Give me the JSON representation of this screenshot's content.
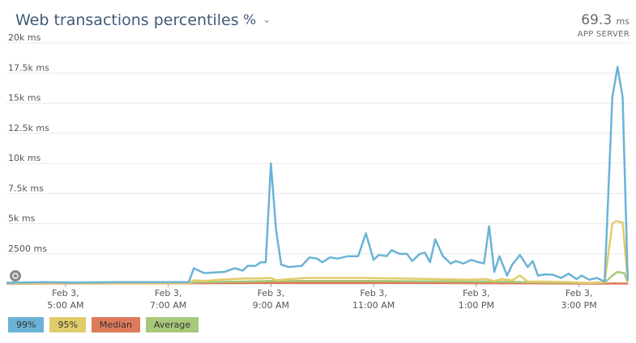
{
  "header": {
    "title": "Web transactions percentiles",
    "unit_label": "%",
    "summary_value": "69.3",
    "summary_unit": "ms",
    "summary_label": "APP SERVER"
  },
  "icons": {
    "dropdown": "chevron-down-icon",
    "scrubber": "scrubber-handle-icon"
  },
  "chart_data": {
    "type": "line",
    "title": "Web transactions percentiles",
    "ylim": [
      0,
      20000
    ],
    "y_ticks": [
      {
        "value": 2500,
        "label": "2500 ms"
      },
      {
        "value": 5000,
        "label": "5k ms"
      },
      {
        "value": 7500,
        "label": "7.5k ms"
      },
      {
        "value": 10000,
        "label": "10k ms"
      },
      {
        "value": 12500,
        "label": "12.5k ms"
      },
      {
        "value": 15000,
        "label": "15k ms"
      },
      {
        "value": 17500,
        "label": "17.5k ms"
      },
      {
        "value": 20000,
        "label": "20k ms"
      }
    ],
    "x_range_hours": [
      3.85,
      16.0
    ],
    "x_ticks": [
      {
        "hour": 5,
        "line1": "Feb 3,",
        "line2": "5:00 AM"
      },
      {
        "hour": 7,
        "line1": "Feb 3,",
        "line2": "7:00 AM"
      },
      {
        "hour": 9,
        "line1": "Feb 3,",
        "line2": "9:00 AM"
      },
      {
        "hour": 11,
        "line1": "Feb 3,",
        "line2": "11:00 AM"
      },
      {
        "hour": 13,
        "line1": "Feb 3,",
        "line2": "1:00 PM"
      },
      {
        "hour": 15,
        "line1": "Feb 3,",
        "line2": "3:00 PM"
      }
    ],
    "grid": true,
    "legend_position": "bottom-left",
    "series": [
      {
        "name": "99%",
        "color": "#6bb3d6",
        "points": [
          [
            3.85,
            100
          ],
          [
            4.6,
            150
          ],
          [
            5.2,
            120
          ],
          [
            6.0,
            150
          ],
          [
            6.8,
            150
          ],
          [
            7.4,
            150
          ],
          [
            7.5,
            1300
          ],
          [
            7.7,
            900
          ],
          [
            7.9,
            950
          ],
          [
            8.1,
            1000
          ],
          [
            8.3,
            1300
          ],
          [
            8.45,
            1100
          ],
          [
            8.55,
            1500
          ],
          [
            8.7,
            1500
          ],
          [
            8.8,
            1800
          ],
          [
            8.9,
            1800
          ],
          [
            9.0,
            10000
          ],
          [
            9.1,
            4500
          ],
          [
            9.2,
            1600
          ],
          [
            9.35,
            1400
          ],
          [
            9.6,
            1500
          ],
          [
            9.75,
            2200
          ],
          [
            9.9,
            2100
          ],
          [
            10.0,
            1800
          ],
          [
            10.15,
            2200
          ],
          [
            10.3,
            2100
          ],
          [
            10.5,
            2300
          ],
          [
            10.7,
            2300
          ],
          [
            10.85,
            4200
          ],
          [
            11.0,
            2000
          ],
          [
            11.1,
            2400
          ],
          [
            11.25,
            2300
          ],
          [
            11.35,
            2800
          ],
          [
            11.5,
            2500
          ],
          [
            11.65,
            2500
          ],
          [
            11.75,
            1900
          ],
          [
            11.9,
            2500
          ],
          [
            12.0,
            2600
          ],
          [
            12.1,
            1800
          ],
          [
            12.2,
            3700
          ],
          [
            12.35,
            2300
          ],
          [
            12.5,
            1700
          ],
          [
            12.6,
            1900
          ],
          [
            12.75,
            1700
          ],
          [
            12.9,
            2000
          ],
          [
            13.05,
            1800
          ],
          [
            13.15,
            1700
          ],
          [
            13.25,
            4800
          ],
          [
            13.35,
            1000
          ],
          [
            13.45,
            2300
          ],
          [
            13.6,
            700
          ],
          [
            13.7,
            1600
          ],
          [
            13.85,
            2400
          ],
          [
            14.0,
            1400
          ],
          [
            14.1,
            1900
          ],
          [
            14.2,
            700
          ],
          [
            14.35,
            800
          ],
          [
            14.5,
            750
          ],
          [
            14.65,
            500
          ],
          [
            14.8,
            850
          ],
          [
            14.95,
            400
          ],
          [
            15.05,
            700
          ],
          [
            15.2,
            350
          ],
          [
            15.35,
            500
          ],
          [
            15.5,
            200
          ],
          [
            15.65,
            300
          ],
          [
            15.85,
            100
          ],
          [
            16.0,
            100
          ]
        ]
      },
      {
        "name": "95%",
        "color": "#e1cc6b",
        "points": [
          [
            3.85,
            60
          ],
          [
            7.4,
            80
          ],
          [
            7.5,
            300
          ],
          [
            7.7,
            250
          ],
          [
            8.0,
            350
          ],
          [
            8.5,
            450
          ],
          [
            8.8,
            450
          ],
          [
            9.0,
            500
          ],
          [
            9.1,
            300
          ],
          [
            9.35,
            400
          ],
          [
            9.7,
            500
          ],
          [
            10.2,
            500
          ],
          [
            10.8,
            500
          ],
          [
            11.5,
            450
          ],
          [
            12.2,
            400
          ],
          [
            12.8,
            350
          ],
          [
            13.2,
            400
          ],
          [
            13.35,
            250
          ],
          [
            13.5,
            400
          ],
          [
            13.7,
            300
          ],
          [
            13.85,
            700
          ],
          [
            14.0,
            200
          ],
          [
            14.3,
            200
          ],
          [
            14.8,
            150
          ],
          [
            15.2,
            80
          ],
          [
            16.0,
            60
          ]
        ]
      },
      {
        "name": "Median",
        "color": "#dd7a5b",
        "points": [
          [
            3.85,
            30
          ],
          [
            7.5,
            60
          ],
          [
            9.0,
            80
          ],
          [
            10.5,
            90
          ],
          [
            12.0,
            80
          ],
          [
            13.5,
            60
          ],
          [
            14.5,
            40
          ],
          [
            16.0,
            30
          ]
        ]
      },
      {
        "name": "Average",
        "color": "#a7c87a",
        "points": [
          [
            3.85,
            70
          ],
          [
            7.4,
            90
          ],
          [
            7.6,
            150
          ],
          [
            8.5,
            200
          ],
          [
            9.0,
            250
          ],
          [
            10.0,
            250
          ],
          [
            11.0,
            250
          ],
          [
            12.0,
            220
          ],
          [
            13.0,
            200
          ],
          [
            13.5,
            180
          ],
          [
            14.5,
            120
          ],
          [
            15.2,
            80
          ],
          [
            16.0,
            70
          ]
        ]
      }
    ],
    "spike": {
      "start": 15.5,
      "end": 16.0,
      "99%": [
        [
          15.5,
          200
        ],
        [
          15.65,
          15500
        ],
        [
          15.75,
          18000
        ],
        [
          15.85,
          15500
        ],
        [
          15.95,
          300
        ]
      ],
      "95%": [
        [
          15.5,
          150
        ],
        [
          15.65,
          5000
        ],
        [
          15.72,
          5200
        ],
        [
          15.85,
          5100
        ],
        [
          15.95,
          200
        ]
      ],
      "Average": [
        [
          15.5,
          100
        ],
        [
          15.65,
          700
        ],
        [
          15.75,
          1000
        ],
        [
          15.88,
          900
        ],
        [
          15.95,
          150
        ]
      ],
      "Median": [
        [
          15.5,
          30
        ],
        [
          15.7,
          40
        ],
        [
          15.95,
          30
        ]
      ]
    }
  }
}
